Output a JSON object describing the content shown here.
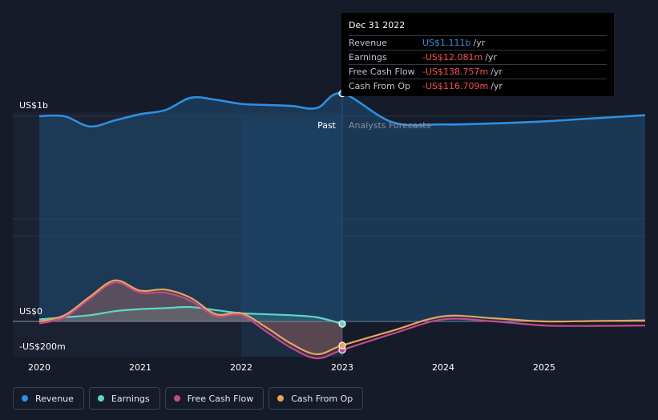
{
  "chart_data": {
    "type": "line",
    "y_axis_labels": [
      "US$1b",
      "US$0",
      "-US$200m"
    ],
    "x_ticks": [
      "2020",
      "2021",
      "2022",
      "2023",
      "2024",
      "2025"
    ],
    "x_range": [
      2020.0,
      2026.0
    ],
    "y_range_millions": [
      -300,
      1150
    ],
    "past_label": "Past",
    "forecast_label": "Analysts Forecasts",
    "divider_x": 2023.0,
    "grid": true,
    "legend_placement": "bottom-left",
    "series": [
      {
        "name": "Revenue",
        "color": "#2f8fe0",
        "values": [
          [
            2020.0,
            1000
          ],
          [
            2020.25,
            1000
          ],
          [
            2020.5,
            950
          ],
          [
            2020.75,
            980
          ],
          [
            2021.0,
            1010
          ],
          [
            2021.25,
            1030
          ],
          [
            2021.5,
            1090
          ],
          [
            2021.75,
            1080
          ],
          [
            2022.0,
            1060
          ],
          [
            2022.25,
            1055
          ],
          [
            2022.5,
            1050
          ],
          [
            2022.75,
            1040
          ],
          [
            2023.0,
            1111
          ],
          [
            2023.5,
            970
          ],
          [
            2024.0,
            960
          ],
          [
            2024.5,
            965
          ],
          [
            2025.0,
            975
          ],
          [
            2025.5,
            990
          ],
          [
            2026.0,
            1005
          ]
        ]
      },
      {
        "name": "Earnings",
        "color": "#5fd6c8",
        "values": [
          [
            2020.0,
            10
          ],
          [
            2020.25,
            20
          ],
          [
            2020.5,
            30
          ],
          [
            2020.75,
            50
          ],
          [
            2021.0,
            60
          ],
          [
            2021.25,
            65
          ],
          [
            2021.5,
            70
          ],
          [
            2021.75,
            55
          ],
          [
            2022.0,
            40
          ],
          [
            2022.25,
            35
          ],
          [
            2022.5,
            30
          ],
          [
            2022.75,
            20
          ],
          [
            2023.0,
            -12
          ]
        ]
      },
      {
        "name": "Free Cash Flow",
        "color": "#c24a8d",
        "values": [
          [
            2020.0,
            -10
          ],
          [
            2020.25,
            20
          ],
          [
            2020.5,
            110
          ],
          [
            2020.75,
            190
          ],
          [
            2021.0,
            140
          ],
          [
            2021.25,
            140
          ],
          [
            2021.5,
            100
          ],
          [
            2021.75,
            25
          ],
          [
            2022.0,
            30
          ],
          [
            2022.25,
            -50
          ],
          [
            2022.5,
            -130
          ],
          [
            2022.75,
            -180
          ],
          [
            2023.0,
            -139
          ],
          [
            2023.5,
            -60
          ],
          [
            2024.0,
            10
          ],
          [
            2024.5,
            0
          ],
          [
            2025.0,
            -20
          ],
          [
            2025.5,
            -22
          ],
          [
            2026.0,
            -20
          ]
        ]
      },
      {
        "name": "Cash From Op",
        "color": "#e8a55a",
        "values": [
          [
            2020.0,
            0
          ],
          [
            2020.25,
            30
          ],
          [
            2020.5,
            120
          ],
          [
            2020.75,
            200
          ],
          [
            2021.0,
            150
          ],
          [
            2021.25,
            155
          ],
          [
            2021.5,
            115
          ],
          [
            2021.75,
            35
          ],
          [
            2022.0,
            40
          ],
          [
            2022.25,
            -30
          ],
          [
            2022.5,
            -110
          ],
          [
            2022.75,
            -160
          ],
          [
            2023.0,
            -117
          ],
          [
            2023.5,
            -45
          ],
          [
            2024.0,
            25
          ],
          [
            2024.5,
            15
          ],
          [
            2025.0,
            0
          ],
          [
            2025.5,
            2
          ],
          [
            2026.0,
            5
          ]
        ]
      }
    ]
  },
  "tooltip": {
    "date": "Dec 31 2022",
    "rows": [
      {
        "label": "Revenue",
        "value": "US$1.111b",
        "unit": "/yr",
        "color": "#2f8fe0"
      },
      {
        "label": "Earnings",
        "value": "-US$12.081m",
        "unit": "/yr",
        "color": "#ff4d4d"
      },
      {
        "label": "Free Cash Flow",
        "value": "-US$138.757m",
        "unit": "/yr",
        "color": "#ff4d4d"
      },
      {
        "label": "Cash From Op",
        "value": "-US$116.709m",
        "unit": "/yr",
        "color": "#ff4d4d"
      }
    ]
  },
  "legend": [
    {
      "label": "Revenue",
      "color": "#2f8fe0"
    },
    {
      "label": "Earnings",
      "color": "#5fd6c8"
    },
    {
      "label": "Free Cash Flow",
      "color": "#c24a8d"
    },
    {
      "label": "Cash From Op",
      "color": "#e8a55a"
    }
  ]
}
